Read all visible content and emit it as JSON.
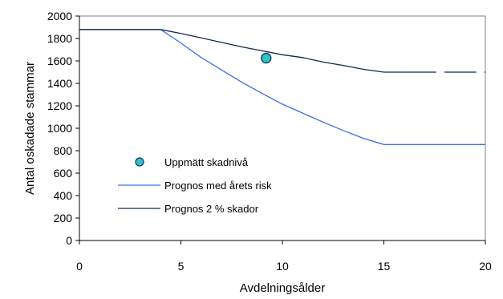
{
  "chart_data": {
    "type": "line",
    "title": "",
    "xlabel": "Avdelningsålder",
    "ylabel": "Antal oskadade stammar",
    "xlim": [
      0,
      20
    ],
    "ylim": [
      0,
      2000
    ],
    "xticks": [
      "0",
      "5",
      "10",
      "15",
      "20"
    ],
    "yticks": [
      "0",
      "200",
      "400",
      "600",
      "800",
      "1000",
      "1200",
      "1400",
      "1600",
      "1800",
      "2000"
    ],
    "grid": false,
    "legend_position": "left-center",
    "series": [
      {
        "name": "Uppmätt skadnivå",
        "kind": "scatter",
        "color": "#2ec4c4",
        "edge_color": "#1a3a6a",
        "points": [
          [
            9.2,
            1625
          ]
        ]
      },
      {
        "name": "Prognos med årets risk",
        "kind": "line",
        "color": "#3a6fe0",
        "points": [
          [
            0,
            1880
          ],
          [
            4,
            1880
          ],
          [
            5,
            1760
          ],
          [
            6,
            1630
          ],
          [
            7,
            1520
          ],
          [
            8,
            1410
          ],
          [
            9,
            1310
          ],
          [
            10,
            1215
          ],
          [
            11,
            1135
          ],
          [
            12,
            1055
          ],
          [
            13,
            980
          ],
          [
            14,
            910
          ],
          [
            15,
            855
          ],
          [
            16,
            855
          ],
          [
            17,
            855
          ],
          [
            18,
            855
          ],
          [
            19,
            855
          ],
          [
            20,
            855
          ]
        ]
      },
      {
        "name": "Prognos 2 % skador",
        "kind": "line",
        "color": "#0d2a4a",
        "dashed_from_x": 16,
        "points": [
          [
            0,
            1880
          ],
          [
            4,
            1880
          ],
          [
            5,
            1845
          ],
          [
            6,
            1805
          ],
          [
            7,
            1765
          ],
          [
            8,
            1725
          ],
          [
            9,
            1690
          ],
          [
            10,
            1655
          ],
          [
            11,
            1630
          ],
          [
            12,
            1590
          ],
          [
            13,
            1560
          ],
          [
            14,
            1525
          ],
          [
            15,
            1500
          ],
          [
            16,
            1500
          ],
          [
            17,
            1500
          ],
          [
            18,
            1500
          ],
          [
            19,
            1500
          ],
          [
            20,
            1500
          ]
        ]
      }
    ]
  }
}
